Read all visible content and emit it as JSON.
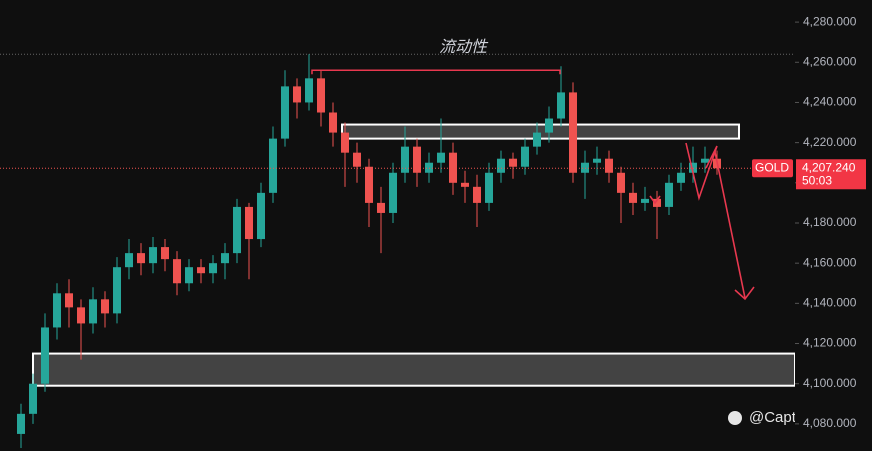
{
  "chart_data": {
    "type": "candlestick",
    "symbol": "GOLD",
    "annotation_title": "流动性",
    "watermark": "@Captain 队长",
    "last_price": {
      "value": 4207.24,
      "label": "4,207.240"
    },
    "countdown": "50:03",
    "liquidity_level": 4256,
    "reference_level": 4264,
    "zones": [
      {
        "top": 4229,
        "bottom": 4222
      },
      {
        "top": 4115,
        "bottom": 4099
      }
    ],
    "up_color": "#26a69a",
    "down_color": "#ef5350",
    "ylim": [
      4066.5,
      4291
    ],
    "yticks": [
      {
        "value": 4080,
        "label": "4,080.000"
      },
      {
        "value": 4100,
        "label": "4,100.000"
      },
      {
        "value": 4120,
        "label": "4,120.000"
      },
      {
        "value": 4140,
        "label": "4,140.000"
      },
      {
        "value": 4160,
        "label": "4,160.000"
      },
      {
        "value": 4180,
        "label": "4,180.000"
      },
      {
        "value": 4200,
        "label": "4,200.000"
      },
      {
        "value": 4220,
        "label": "4,220.000"
      },
      {
        "value": 4240,
        "label": "4,240.000"
      },
      {
        "value": 4260,
        "label": "4,260.000"
      },
      {
        "value": 4280,
        "label": "4,280.000"
      }
    ],
    "open": [
      4075,
      4085,
      4100,
      4128,
      4145,
      4138,
      4130,
      4142,
      4135,
      4158,
      4165,
      4160,
      4168,
      4162,
      4150,
      4158,
      4155,
      4160,
      4165,
      4188,
      4172,
      4195,
      4222,
      4248,
      4240,
      4252,
      4235,
      4225,
      4215,
      4208,
      4190,
      4185,
      4205,
      4218,
      4205,
      4210,
      4215,
      4200,
      4198,
      4190,
      4205,
      4212,
      4208,
      4218,
      4225,
      4232,
      4245,
      4205,
      4210,
      4212,
      4205,
      4195,
      4190,
      4192,
      4188,
      4200,
      4205,
      4210,
      4212
    ],
    "high": [
      4090,
      4105,
      4135,
      4150,
      4152,
      4142,
      4148,
      4146,
      4163,
      4172,
      4170,
      4173,
      4172,
      4166,
      4162,
      4162,
      4164,
      4170,
      4192,
      4190,
      4200,
      4228,
      4256,
      4252,
      4264,
      4256,
      4240,
      4230,
      4220,
      4212,
      4198,
      4210,
      4228,
      4222,
      4215,
      4232,
      4220,
      4206,
      4204,
      4210,
      4216,
      4215,
      4222,
      4230,
      4238,
      4258,
      4250,
      4216,
      4218,
      4216,
      4208,
      4200,
      4198,
      4196,
      4204,
      4210,
      4218,
      4218,
      4216
    ],
    "low": [
      4068,
      4080,
      4096,
      4122,
      4128,
      4112,
      4125,
      4128,
      4130,
      4152,
      4154,
      4155,
      4156,
      4144,
      4146,
      4150,
      4150,
      4152,
      4160,
      4152,
      4168,
      4190,
      4218,
      4232,
      4236,
      4228,
      4218,
      4198,
      4200,
      4178,
      4165,
      4180,
      4200,
      4198,
      4200,
      4205,
      4194,
      4190,
      4178,
      4186,
      4200,
      4202,
      4204,
      4214,
      4220,
      4228,
      4200,
      4192,
      4204,
      4200,
      4180,
      4184,
      4186,
      4172,
      4184,
      4196,
      4200,
      4205,
      4204
    ],
    "close": [
      4085,
      4100,
      4128,
      4145,
      4138,
      4130,
      4142,
      4135,
      4158,
      4165,
      4160,
      4168,
      4162,
      4150,
      4158,
      4155,
      4160,
      4165,
      4188,
      4172,
      4195,
      4222,
      4248,
      4240,
      4252,
      4235,
      4225,
      4215,
      4208,
      4190,
      4185,
      4205,
      4218,
      4205,
      4210,
      4215,
      4200,
      4198,
      4190,
      4205,
      4212,
      4208,
      4218,
      4225,
      4232,
      4245,
      4205,
      4210,
      4212,
      4205,
      4195,
      4190,
      4192,
      4188,
      4200,
      4205,
      4210,
      4212,
      4207.24
    ]
  }
}
